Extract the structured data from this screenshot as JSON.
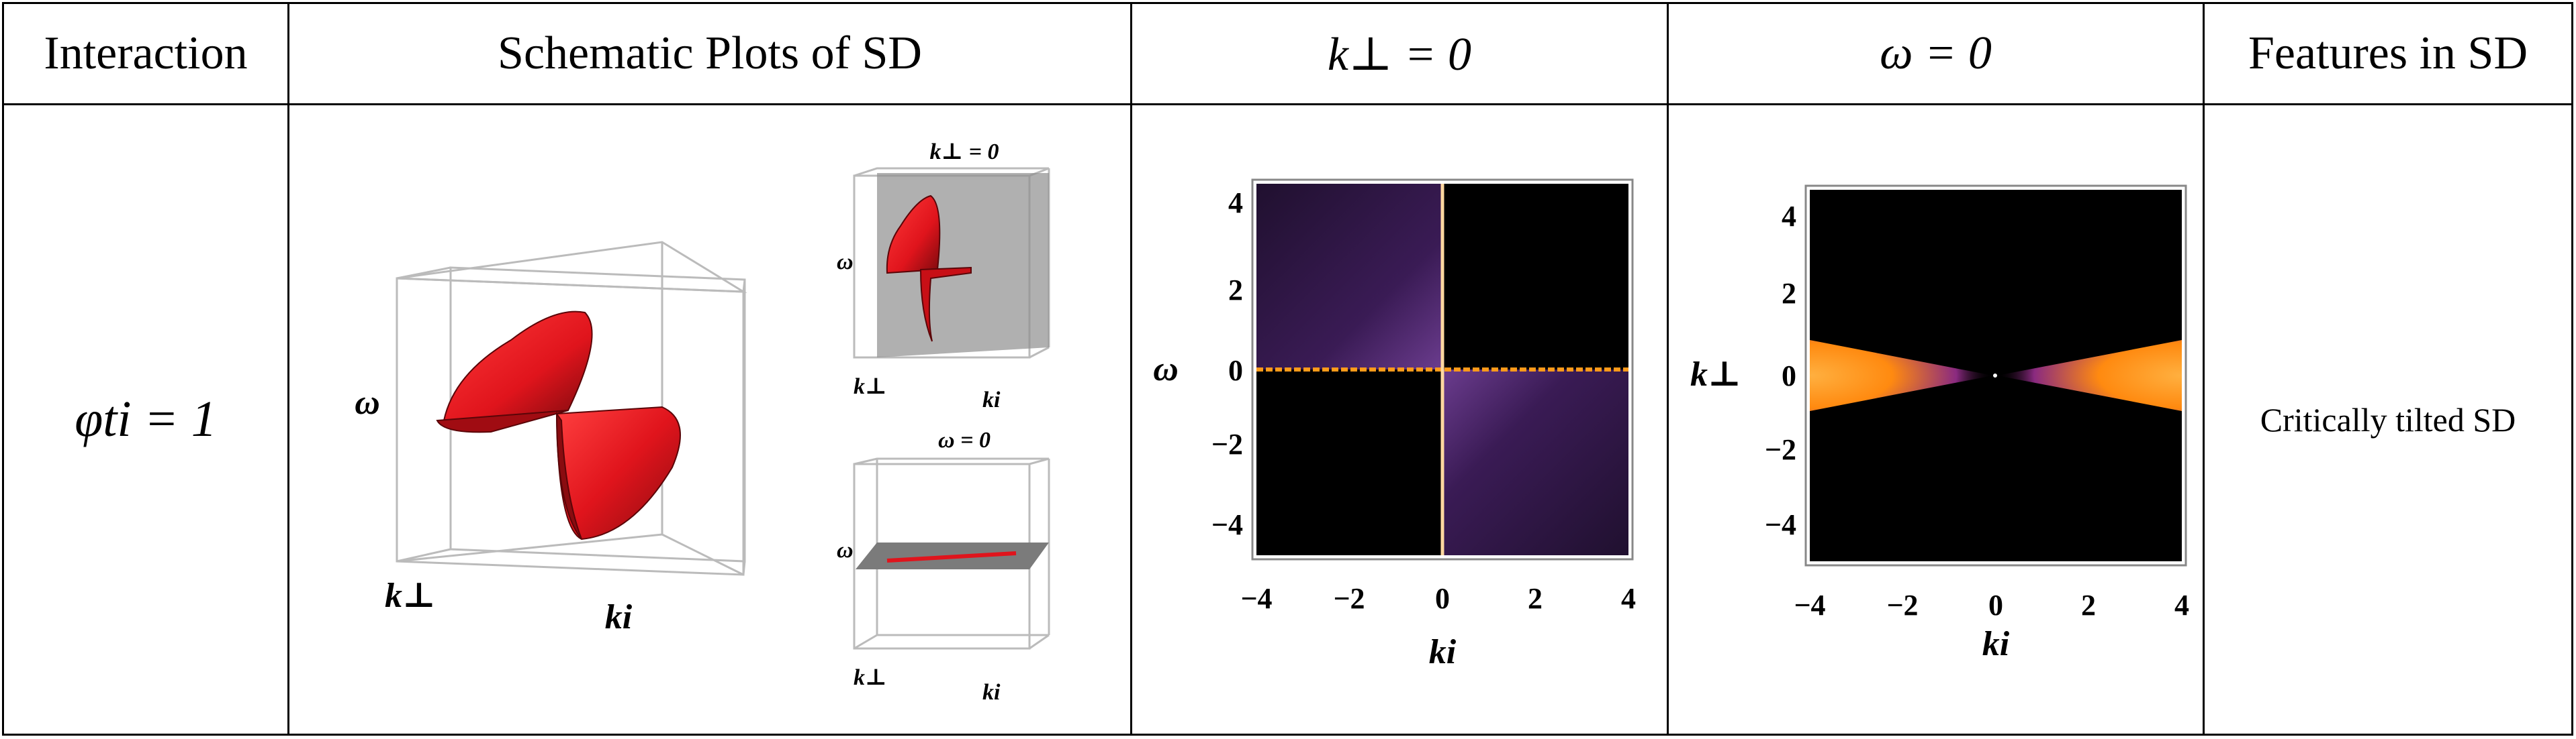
{
  "headers": {
    "interaction": "Interaction",
    "schematic": "Schematic Plots of SD",
    "kperp_zero": "k⊥ = 0",
    "omega_zero": "ω = 0",
    "features": "Features in SD"
  },
  "row": {
    "interaction_value": "φti = 1",
    "feature_text": "Critically tilted SD"
  },
  "schematic": {
    "main_labels": {
      "omega": "ω",
      "kperp": "k⊥",
      "ki": "ki"
    },
    "inset_top": {
      "title": "k⊥ = 0",
      "omega": "ω",
      "kperp": "k⊥",
      "ki": "ki"
    },
    "inset_bottom": {
      "title": "ω = 0",
      "omega": "ω",
      "kperp": "k⊥",
      "ki": "ki"
    }
  },
  "plot_kperp0": {
    "xlabel": "ki",
    "ylabel": "ω",
    "xticks": [
      "−4",
      "−2",
      "0",
      "2",
      "4"
    ],
    "yticks": [
      "4",
      "2",
      "0",
      "−2",
      "−4"
    ]
  },
  "plot_omega0": {
    "xlabel": "ki",
    "ylabel": "k⊥",
    "xticks": [
      "−4",
      "−2",
      "0",
      "2",
      "4"
    ],
    "yticks": [
      "4",
      "2",
      "0",
      "−2",
      "−4"
    ]
  },
  "chart_data": [
    {
      "type": "heatmap",
      "xlabel": "ki",
      "ylabel": "ω",
      "xlim": [
        -5,
        5
      ],
      "ylim": [
        -5,
        5
      ]
    },
    {
      "type": "heatmap",
      "xlabel": "ki",
      "ylabel": "k⊥",
      "xlim": [
        -5,
        5
      ],
      "ylim": [
        -5,
        5
      ]
    }
  ],
  "colors": {
    "cone_red": "#e0141c",
    "heat_purple": "#3b1a5a",
    "heat_orange": "#ff9a1a"
  }
}
